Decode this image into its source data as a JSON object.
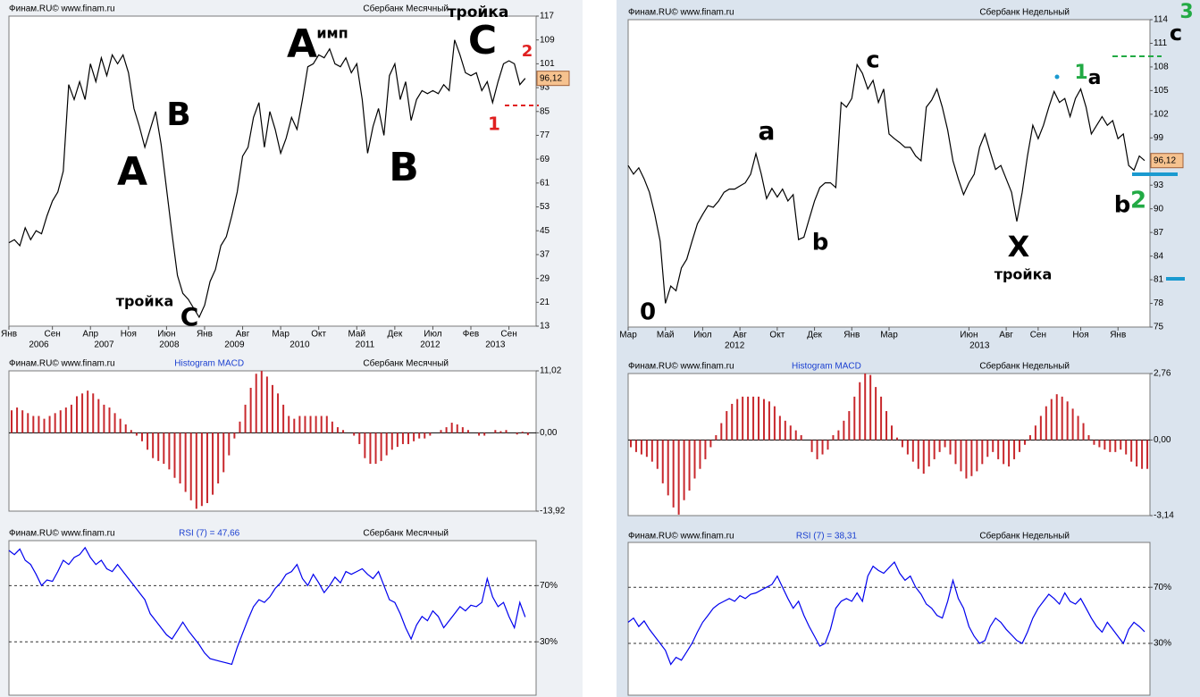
{
  "chart_data": [
    {
      "type": "line",
      "source": "Финам.RU©  www.finam.ru",
      "title": "Сбербанк Месячный",
      "color": "#000000",
      "values": [
        41,
        42,
        40,
        46,
        42,
        45,
        44,
        50,
        55,
        58,
        65,
        94,
        89,
        95,
        89,
        101,
        95,
        103,
        97,
        104,
        101,
        104,
        98,
        86,
        80,
        73,
        79,
        85,
        74,
        59,
        44,
        30,
        24,
        22,
        19,
        16,
        20,
        28,
        32,
        40,
        43,
        50,
        58,
        70,
        73,
        83,
        88,
        73,
        85,
        79,
        71,
        76,
        83,
        79,
        89,
        100,
        101,
        104,
        103,
        106,
        101,
        100,
        103,
        98,
        101,
        89,
        71,
        80,
        86,
        77,
        97,
        101,
        89,
        95,
        82,
        89,
        92,
        91,
        92,
        91,
        94,
        92,
        109,
        104,
        98,
        97,
        98,
        92,
        95,
        88,
        95,
        101,
        102,
        101,
        94,
        96.12
      ],
      "last_value_label": "96,12",
      "xlim": [
        0,
        97
      ],
      "ylim": [
        13,
        117
      ],
      "yticks": [
        13,
        21,
        29,
        37,
        45,
        53,
        61,
        69,
        77,
        85,
        93,
        101,
        109,
        117
      ],
      "xticks": [
        {
          "value": 0,
          "label": "Янв"
        },
        {
          "value": 8,
          "label": "Сен"
        },
        {
          "value": 15,
          "label": "Апр"
        },
        {
          "value": 22,
          "label": "Ноя"
        },
        {
          "value": 29,
          "label": "Июн"
        },
        {
          "value": 36,
          "label": "Янв"
        },
        {
          "value": 43,
          "label": "Авг"
        },
        {
          "value": 50,
          "label": "Мар"
        },
        {
          "value": 57,
          "label": "Окт"
        },
        {
          "value": 64,
          "label": "Май"
        },
        {
          "value": 71,
          "label": "Дек"
        },
        {
          "value": 78,
          "label": "Июл"
        },
        {
          "value": 85,
          "label": "Фев"
        },
        {
          "value": 92,
          "label": "Сен"
        }
      ],
      "year_labels": [
        {
          "value": 5.5,
          "label": "2006"
        },
        {
          "value": 17.5,
          "label": "2007"
        },
        {
          "value": 29.5,
          "label": "2008"
        },
        {
          "value": 41.5,
          "label": "2009"
        },
        {
          "value": 53.5,
          "label": "2010"
        },
        {
          "value": 65.5,
          "label": "2011"
        },
        {
          "value": 77.5,
          "label": "2012"
        },
        {
          "value": 89.5,
          "label": "2013"
        }
      ],
      "annotations": [
        {
          "text": "A",
          "color": "#000000"
        },
        {
          "text": "B",
          "color": "#000000"
        },
        {
          "text": "A",
          "color": "#000000"
        },
        {
          "text": "имп",
          "color": "#000000"
        },
        {
          "text": "B",
          "color": "#000000"
        },
        {
          "text": "тройка",
          "color": "#000000"
        },
        {
          "text": "C",
          "color": "#000000"
        },
        {
          "text": "2",
          "color": "#e02020"
        },
        {
          "text": "1",
          "color": "#e02020"
        },
        {
          "text": "тройка",
          "color": "#000000"
        },
        {
          "text": "C",
          "color": "#000000"
        }
      ]
    },
    {
      "type": "bar",
      "source": "Финам.RU©  www.finam.ru",
      "indicator": "Histogram MACD",
      "title": "Сбербанк Месячный",
      "color": "#c8282d",
      "values": [
        4,
        4.5,
        4,
        3.5,
        3,
        3,
        2.5,
        3,
        3.5,
        4,
        4.5,
        5,
        6.5,
        7,
        7.5,
        7,
        6,
        5,
        4.5,
        3.5,
        2.5,
        1.5,
        0.5,
        -0.5,
        -1.5,
        -3,
        -4.5,
        -5,
        -5.5,
        -6.5,
        -8,
        -9,
        -10.5,
        -12,
        -13.5,
        -13,
        -12.5,
        -11,
        -9,
        -7,
        -4,
        -1,
        2,
        5,
        8,
        10.5,
        11,
        10,
        8.5,
        7,
        5,
        3,
        2.5,
        3,
        3,
        3,
        3,
        3,
        3,
        2,
        1,
        0.5,
        0,
        -0.5,
        -2,
        -4.5,
        -5.5,
        -5.5,
        -5,
        -4,
        -3,
        -2.5,
        -2,
        -2,
        -1.5,
        -1,
        -1,
        -0.5,
        0,
        0.5,
        1,
        1.8,
        1.5,
        1,
        0.5,
        0,
        -0.5,
        -0.5,
        0,
        0.5,
        0.3,
        0.5,
        0,
        -0.3,
        0.2,
        -0.4
      ],
      "xlim": [
        0,
        97
      ],
      "ylim": [
        -13.92,
        11.02
      ],
      "yticks": [
        {
          "value": 11.02,
          "label": "11,02"
        },
        {
          "value": 0,
          "label": "0,00"
        },
        {
          "value": -13.92,
          "label": "-13,92"
        }
      ]
    },
    {
      "type": "line",
      "source": "Финам.RU©  www.finam.ru",
      "indicator": "RSI (7) = 47,66",
      "title": "Сбербанк Месячный",
      "color": "#0000ee",
      "values": [
        95,
        92,
        96,
        88,
        85,
        78,
        70,
        74,
        73,
        80,
        88,
        85,
        90,
        92,
        97,
        90,
        85,
        88,
        82,
        80,
        85,
        80,
        75,
        70,
        65,
        60,
        50,
        45,
        40,
        35,
        32,
        38,
        44,
        38,
        33,
        28,
        22,
        18,
        17,
        16,
        15,
        14,
        26,
        36,
        46,
        55,
        60,
        58,
        62,
        68,
        72,
        78,
        80,
        85,
        75,
        70,
        78,
        72,
        65,
        70,
        76,
        72,
        80,
        78,
        80,
        82,
        78,
        75,
        80,
        70,
        60,
        58,
        50,
        40,
        32,
        42,
        48,
        45,
        52,
        48,
        40,
        45,
        50,
        55,
        52,
        56,
        55,
        58,
        75,
        62,
        55,
        58,
        48,
        40,
        58,
        47.66
      ],
      "xlim": [
        0,
        97
      ],
      "ylim": [
        -8,
        102
      ],
      "grid": true,
      "yticks": [
        {
          "value": 70,
          "label": "70%"
        },
        {
          "value": 30,
          "label": "30%"
        }
      ]
    },
    {
      "type": "line",
      "source": "Финам.RU©  www.finam.ru",
      "title": "Сбербанк Недельный",
      "color": "#000000",
      "values": [
        95.5,
        94.4,
        95.2,
        93.8,
        92.1,
        89.3,
        85.9,
        78,
        80.2,
        79.6,
        82.5,
        83.6,
        85.9,
        88.1,
        89.3,
        90.4,
        90.2,
        91,
        92.1,
        92.5,
        92.5,
        92.9,
        93.3,
        94.4,
        97,
        94.4,
        91.3,
        92.6,
        91.5,
        92.5,
        91,
        91.8,
        86.1,
        86.4,
        88.7,
        91,
        92.7,
        93.3,
        93.3,
        92.7,
        103.5,
        102.9,
        104,
        108.3,
        107.2,
        105.2,
        106.3,
        103.5,
        105.2,
        99.5,
        98.9,
        98.4,
        97.8,
        97.8,
        96.7,
        96.1,
        102.9,
        103.8,
        105.2,
        102.9,
        100,
        96.1,
        93.8,
        91.8,
        93.3,
        94.4,
        97.8,
        99.5,
        97.2,
        95,
        95.5,
        93.8,
        92.1,
        88.4,
        92.1,
        96.7,
        100.6,
        98.9,
        100.6,
        102.9,
        104.9,
        103.5,
        104,
        101.7,
        104,
        105.2,
        102.9,
        99.5,
        100.6,
        101.7,
        100.6,
        101.2,
        98.9,
        99.5,
        95.5,
        94.9,
        96.7,
        96.12
      ],
      "last_value_label": "96,12",
      "xlim": [
        0,
        98
      ],
      "ylim": [
        75,
        114
      ],
      "yticks": [
        75,
        78,
        81,
        84,
        87,
        90,
        93,
        96,
        99,
        102,
        105,
        108,
        111,
        114
      ],
      "xticks": [
        {
          "value": 0,
          "label": "Мар"
        },
        {
          "value": 7,
          "label": "Май"
        },
        {
          "value": 14,
          "label": "Июл"
        },
        {
          "value": 21,
          "label": "Авг"
        },
        {
          "value": 28,
          "label": "Окт"
        },
        {
          "value": 35,
          "label": "Дек"
        },
        {
          "value": 42,
          "label": "Янв"
        },
        {
          "value": 49,
          "label": "Мар"
        },
        {
          "value": 64,
          "label": "Июн"
        },
        {
          "value": 71,
          "label": "Авг"
        },
        {
          "value": 77,
          "label": "Сен"
        },
        {
          "value": 85,
          "label": "Ноя"
        },
        {
          "value": 92,
          "label": "Янв"
        }
      ],
      "year_labels": [
        {
          "value": 20,
          "label": "2012"
        },
        {
          "value": 66,
          "label": "2013"
        }
      ],
      "annotations": [
        {
          "text": "0",
          "color": "#000000"
        },
        {
          "text": "a",
          "color": "#000000"
        },
        {
          "text": "b",
          "color": "#000000"
        },
        {
          "text": "c",
          "color": "#000000"
        },
        {
          "text": "X",
          "color": "#000000"
        },
        {
          "text": "тройка",
          "color": "#000000"
        },
        {
          "text": "1",
          "color": "#22aa44"
        },
        {
          "text": "a",
          "color": "#000000"
        },
        {
          "text": "b",
          "color": "#000000"
        },
        {
          "text": "2",
          "color": "#22aa44"
        },
        {
          "text": "c",
          "color": "#000000"
        },
        {
          "text": "3",
          "color": "#22aa44"
        }
      ]
    },
    {
      "type": "bar",
      "source": "Финам.RU©  www.finam.ru",
      "indicator": "Histogram MACD",
      "title": "Сбербанк Недельный",
      "color": "#c8282d",
      "values": [
        -0.3,
        -0.5,
        -0.6,
        -0.7,
        -0.9,
        -1.2,
        -1.8,
        -2.3,
        -2.8,
        -3.1,
        -2.5,
        -2.1,
        -1.6,
        -1.2,
        -0.8,
        -0.3,
        0.2,
        0.7,
        1.2,
        1.5,
        1.7,
        1.8,
        1.8,
        1.8,
        1.8,
        1.7,
        1.6,
        1.4,
        1.0,
        0.8,
        0.6,
        0.4,
        0.2,
        0,
        -0.5,
        -0.8,
        -0.6,
        -0.4,
        0.2,
        0.4,
        0.8,
        1.2,
        1.8,
        2.4,
        2.76,
        2.7,
        2.2,
        1.8,
        1.2,
        0.6,
        0.1,
        -0.3,
        -0.6,
        -0.9,
        -1.2,
        -1.4,
        -1.1,
        -0.8,
        -0.5,
        -0.3,
        -0.6,
        -1.0,
        -1.3,
        -1.6,
        -1.5,
        -1.3,
        -1.0,
        -0.7,
        -0.5,
        -0.8,
        -1.0,
        -1.1,
        -0.8,
        -0.5,
        -0.2,
        0.2,
        0.6,
        1.0,
        1.4,
        1.7,
        1.9,
        1.8,
        1.6,
        1.3,
        1.0,
        0.7,
        0.2,
        -0.2,
        -0.3,
        -0.4,
        -0.5,
        -0.5,
        -0.4,
        -0.6,
        -0.9,
        -1.1,
        -1.2,
        -1.2
      ],
      "xlim": [
        0,
        98
      ],
      "ylim": [
        -3.14,
        2.76
      ],
      "yticks": [
        {
          "value": 2.76,
          "label": "2,76"
        },
        {
          "value": 0,
          "label": "0,00"
        },
        {
          "value": -3.14,
          "label": "-3,14"
        }
      ]
    },
    {
      "type": "line",
      "source": "Финам.RU©  www.finam.ru",
      "indicator": "RSI (7) = 38,31",
      "title": "Сбербанк Недельный",
      "color": "#0000ee",
      "values": [
        45,
        48,
        42,
        46,
        40,
        35,
        30,
        25,
        15,
        20,
        18,
        24,
        30,
        38,
        45,
        50,
        55,
        58,
        60,
        62,
        60,
        64,
        62,
        65,
        66,
        68,
        70,
        72,
        78,
        70,
        62,
        55,
        60,
        50,
        42,
        35,
        28,
        30,
        40,
        55,
        60,
        62,
        60,
        66,
        60,
        78,
        85,
        82,
        80,
        84,
        88,
        80,
        75,
        78,
        70,
        65,
        58,
        55,
        50,
        48,
        60,
        75,
        62,
        55,
        42,
        35,
        30,
        32,
        42,
        48,
        45,
        40,
        36,
        32,
        30,
        38,
        48,
        55,
        60,
        65,
        62,
        58,
        66,
        60,
        58,
        62,
        55,
        48,
        42,
        38,
        45,
        40,
        35,
        30,
        40,
        45,
        42,
        38.31
      ],
      "xlim": [
        0,
        98
      ],
      "ylim": [
        -7,
        102
      ],
      "grid": true,
      "yticks": [
        {
          "value": 70,
          "label": "70%"
        },
        {
          "value": 30,
          "label": "30%"
        }
      ]
    }
  ]
}
